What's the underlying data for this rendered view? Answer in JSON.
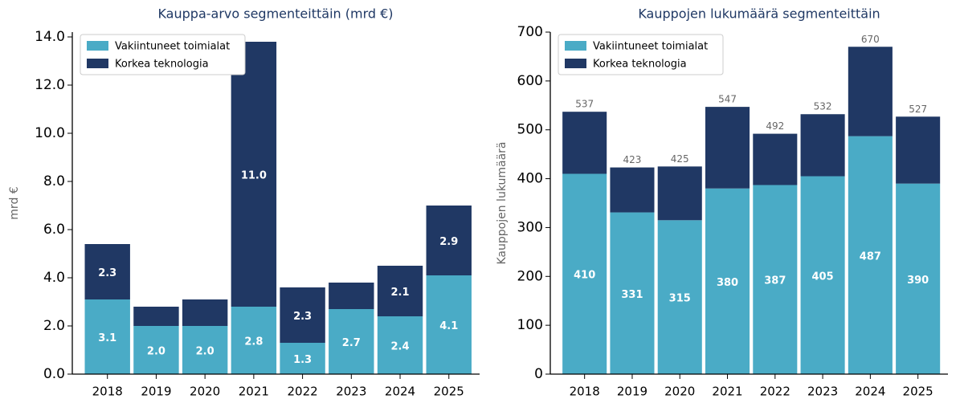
{
  "chart_data": [
    {
      "type": "bar",
      "stacked": true,
      "title": "Kauppa-arvo segmenteittäin (mrd €)",
      "ylabel": "mrd €",
      "categories": [
        "2018",
        "2019",
        "2020",
        "2021",
        "2022",
        "2023",
        "2024",
        "2025"
      ],
      "series": [
        {
          "name": "Vakiintuneet toimialat",
          "color": "#4aabc6",
          "values": [
            3.1,
            2.0,
            2.0,
            2.8,
            1.3,
            2.7,
            2.4,
            4.1
          ],
          "value_labels": [
            "3.1",
            "2.0",
            "2.0",
            "2.8",
            "1.3",
            "2.7",
            "2.4",
            "4.1"
          ]
        },
        {
          "name": "Korkea teknologia",
          "color": "#203864",
          "values": [
            2.3,
            0.8,
            1.1,
            11.0,
            2.3,
            1.1,
            2.1,
            2.9
          ],
          "value_labels": [
            "2.3",
            null,
            null,
            "11.0",
            "2.3",
            null,
            "2.1",
            "2.9"
          ]
        }
      ],
      "ylim": [
        0,
        14.2
      ],
      "yticks": [
        {
          "value": 0,
          "label": "0.0"
        },
        {
          "value": 2,
          "label": "2.0"
        },
        {
          "value": 4,
          "label": "4.0"
        },
        {
          "value": 6,
          "label": "6.0"
        },
        {
          "value": 8,
          "label": "8.0"
        },
        {
          "value": 10,
          "label": "10.0"
        },
        {
          "value": 12,
          "label": "12.0"
        },
        {
          "value": 14,
          "label": "14.0"
        }
      ],
      "legend": "upper left"
    },
    {
      "type": "bar",
      "stacked": true,
      "title": "Kauppojen lukumäärä segmenteittäin",
      "ylabel": "Kauppojen lukumäärä",
      "categories": [
        "2018",
        "2019",
        "2020",
        "2021",
        "2022",
        "2023",
        "2024",
        "2025"
      ],
      "series": [
        {
          "name": "Vakiintuneet toimialat",
          "color": "#4aabc6",
          "values": [
            410,
            331,
            315,
            380,
            387,
            405,
            487,
            390
          ]
        },
        {
          "name": "Korkea teknologia",
          "color": "#203864",
          "values": [
            127,
            92,
            110,
            167,
            105,
            127,
            183,
            137
          ]
        }
      ],
      "total_labels": [
        537,
        423,
        425,
        547,
        492,
        532,
        670,
        527
      ],
      "ylim": [
        0,
        700
      ],
      "yticks": [
        0,
        100,
        200,
        300,
        400,
        500,
        600,
        700
      ],
      "legend": "upper left"
    }
  ]
}
